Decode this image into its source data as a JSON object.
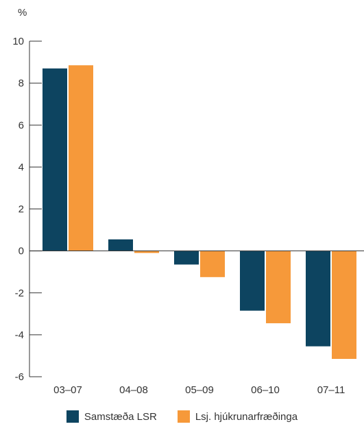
{
  "chart_data": {
    "type": "bar",
    "unit": "%",
    "categories": [
      "03–07",
      "04–08",
      "05–09",
      "06–10",
      "07–11"
    ],
    "series": [
      {
        "name": "Samstæða LSR",
        "color": "#0d4460",
        "values": [
          8.7,
          0.55,
          -0.65,
          -2.85,
          -4.55
        ]
      },
      {
        "name": "Lsj. hjúkrunarfræðinga",
        "color": "#f6993a",
        "values": [
          8.85,
          -0.1,
          -1.25,
          -3.45,
          -5.15
        ]
      }
    ],
    "ylim": [
      -6,
      10
    ],
    "yticks": [
      "10",
      "8",
      "6",
      "4",
      "2",
      "0",
      "-2",
      "-4",
      "-6"
    ],
    "ytick_values": [
      10,
      8,
      6,
      4,
      2,
      0,
      -2,
      -4,
      -6
    ],
    "grid": false,
    "legend_position": "bottom-center"
  }
}
